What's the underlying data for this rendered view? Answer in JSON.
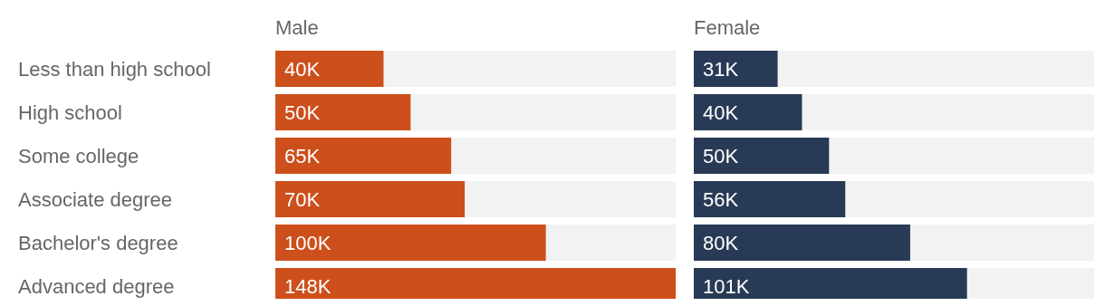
{
  "chart_data": [
    {
      "type": "bar",
      "orientation": "horizontal",
      "title": "Male",
      "categories": [
        "Less than high school",
        "High school",
        "Some college",
        "Associate degree",
        "Bachelor's degree",
        "Advanced degree"
      ],
      "values": [
        40,
        50,
        65,
        70,
        100,
        148
      ],
      "color": "#cc4f1c",
      "xlim": [
        0,
        148
      ],
      "value_labels": [
        "40K",
        "50K",
        "65K",
        "70K",
        "100K",
        "148K"
      ]
    },
    {
      "type": "bar",
      "orientation": "horizontal",
      "title": "Female",
      "categories": [
        null,
        null,
        null,
        null,
        null,
        null
      ],
      "values": [
        31,
        40,
        50,
        56,
        80,
        101
      ],
      "color": "#283a55",
      "xlim": [
        0,
        148
      ],
      "value_labels": [
        "31K",
        "40K",
        "50K",
        "56K",
        "80K",
        "101K"
      ]
    }
  ]
}
